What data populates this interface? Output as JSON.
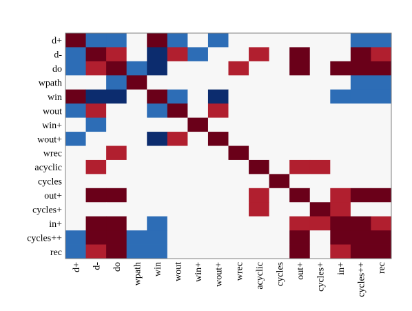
{
  "chart_data": {
    "type": "heatmap",
    "title": "",
    "xlabel": "",
    "ylabel": "",
    "rows": [
      "d+",
      "d-",
      "do",
      "wpath",
      "win",
      "wout",
      "win+",
      "wout+",
      "wrec",
      "acyclic",
      "cycles",
      "out+",
      "cycles+",
      "in+",
      "cycles++",
      "rec"
    ],
    "columns": [
      "d+",
      "d-",
      "do",
      "wpath",
      "win",
      "wout",
      "win+",
      "wout+",
      "wrec",
      "acyclic",
      "cycles",
      "out+",
      "cycles+",
      "in+",
      "cycles++",
      "rec"
    ],
    "value_range": [
      -1,
      1
    ],
    "colors": {
      "-1": "#0c2c6e",
      "-0.5": "#2d6db6",
      "0": "#f7f7f7",
      "0.5": "#b11f2f",
      "1": "#6a0019"
    },
    "values": [
      [
        1.0,
        -0.5,
        -0.5,
        0.0,
        1.0,
        -0.5,
        0.0,
        -0.5,
        0.0,
        0.0,
        0.0,
        0.0,
        0.0,
        0.0,
        -0.5,
        -0.5
      ],
      [
        -0.5,
        1.0,
        0.5,
        0.0,
        -1.0,
        0.5,
        -0.5,
        0.0,
        0.0,
        0.5,
        0.0,
        1.0,
        0.0,
        0.0,
        1.0,
        0.5
      ],
      [
        -0.5,
        0.5,
        1.0,
        -0.5,
        -1.0,
        0.0,
        0.0,
        0.0,
        0.5,
        0.0,
        0.0,
        1.0,
        0.0,
        1.0,
        1.0,
        1.0
      ],
      [
        0.0,
        0.0,
        -0.5,
        1.0,
        0.0,
        0.0,
        0.0,
        0.0,
        0.0,
        0.0,
        0.0,
        0.0,
        0.0,
        0.0,
        -0.5,
        -0.5
      ],
      [
        1.0,
        -1.0,
        -1.0,
        0.0,
        1.0,
        -0.5,
        0.0,
        -1.0,
        0.0,
        0.0,
        0.0,
        0.0,
        0.0,
        -0.5,
        -0.5,
        -0.5
      ],
      [
        -0.5,
        0.5,
        0.0,
        0.0,
        -0.5,
        1.0,
        0.0,
        0.5,
        0.0,
        0.0,
        0.0,
        0.0,
        0.0,
        0.0,
        0.0,
        0.0
      ],
      [
        0.0,
        -0.5,
        0.0,
        0.0,
        0.0,
        0.0,
        1.0,
        0.0,
        0.0,
        0.0,
        0.0,
        0.0,
        0.0,
        0.0,
        0.0,
        0.0
      ],
      [
        -0.5,
        0.0,
        0.0,
        0.0,
        -1.0,
        0.5,
        0.0,
        1.0,
        0.0,
        0.0,
        0.0,
        0.0,
        0.0,
        0.0,
        0.0,
        0.0
      ],
      [
        0.0,
        0.0,
        0.5,
        0.0,
        0.0,
        0.0,
        0.0,
        0.0,
        1.0,
        0.0,
        0.0,
        0.0,
        0.0,
        0.0,
        0.0,
        0.0
      ],
      [
        0.0,
        0.5,
        0.0,
        0.0,
        0.0,
        0.0,
        0.0,
        0.0,
        0.0,
        1.0,
        0.0,
        0.5,
        0.5,
        0.0,
        0.0,
        0.0
      ],
      [
        0.0,
        0.0,
        0.0,
        0.0,
        0.0,
        0.0,
        0.0,
        0.0,
        0.0,
        0.0,
        1.0,
        0.0,
        0.0,
        0.0,
        0.0,
        0.0
      ],
      [
        0.0,
        1.0,
        1.0,
        0.0,
        0.0,
        0.0,
        0.0,
        0.0,
        0.0,
        0.5,
        0.0,
        1.0,
        0.0,
        0.5,
        1.0,
        1.0
      ],
      [
        0.0,
        0.0,
        0.0,
        0.0,
        0.0,
        0.0,
        0.0,
        0.0,
        0.0,
        0.5,
        0.0,
        0.0,
        1.0,
        0.5,
        0.0,
        0.0
      ],
      [
        0.0,
        1.0,
        1.0,
        0.0,
        -0.5,
        0.0,
        0.0,
        0.0,
        0.0,
        0.0,
        0.0,
        0.5,
        0.5,
        1.0,
        1.0,
        0.5
      ],
      [
        -0.5,
        1.0,
        1.0,
        -0.5,
        -0.5,
        0.0,
        0.0,
        0.0,
        0.0,
        0.0,
        0.0,
        1.0,
        0.0,
        1.0,
        1.0,
        1.0
      ],
      [
        -0.5,
        0.5,
        1.0,
        -0.5,
        -0.5,
        0.0,
        0.0,
        0.0,
        0.0,
        0.0,
        0.0,
        1.0,
        0.0,
        0.5,
        1.0,
        1.0
      ]
    ],
    "grid": false,
    "legend": "none"
  }
}
